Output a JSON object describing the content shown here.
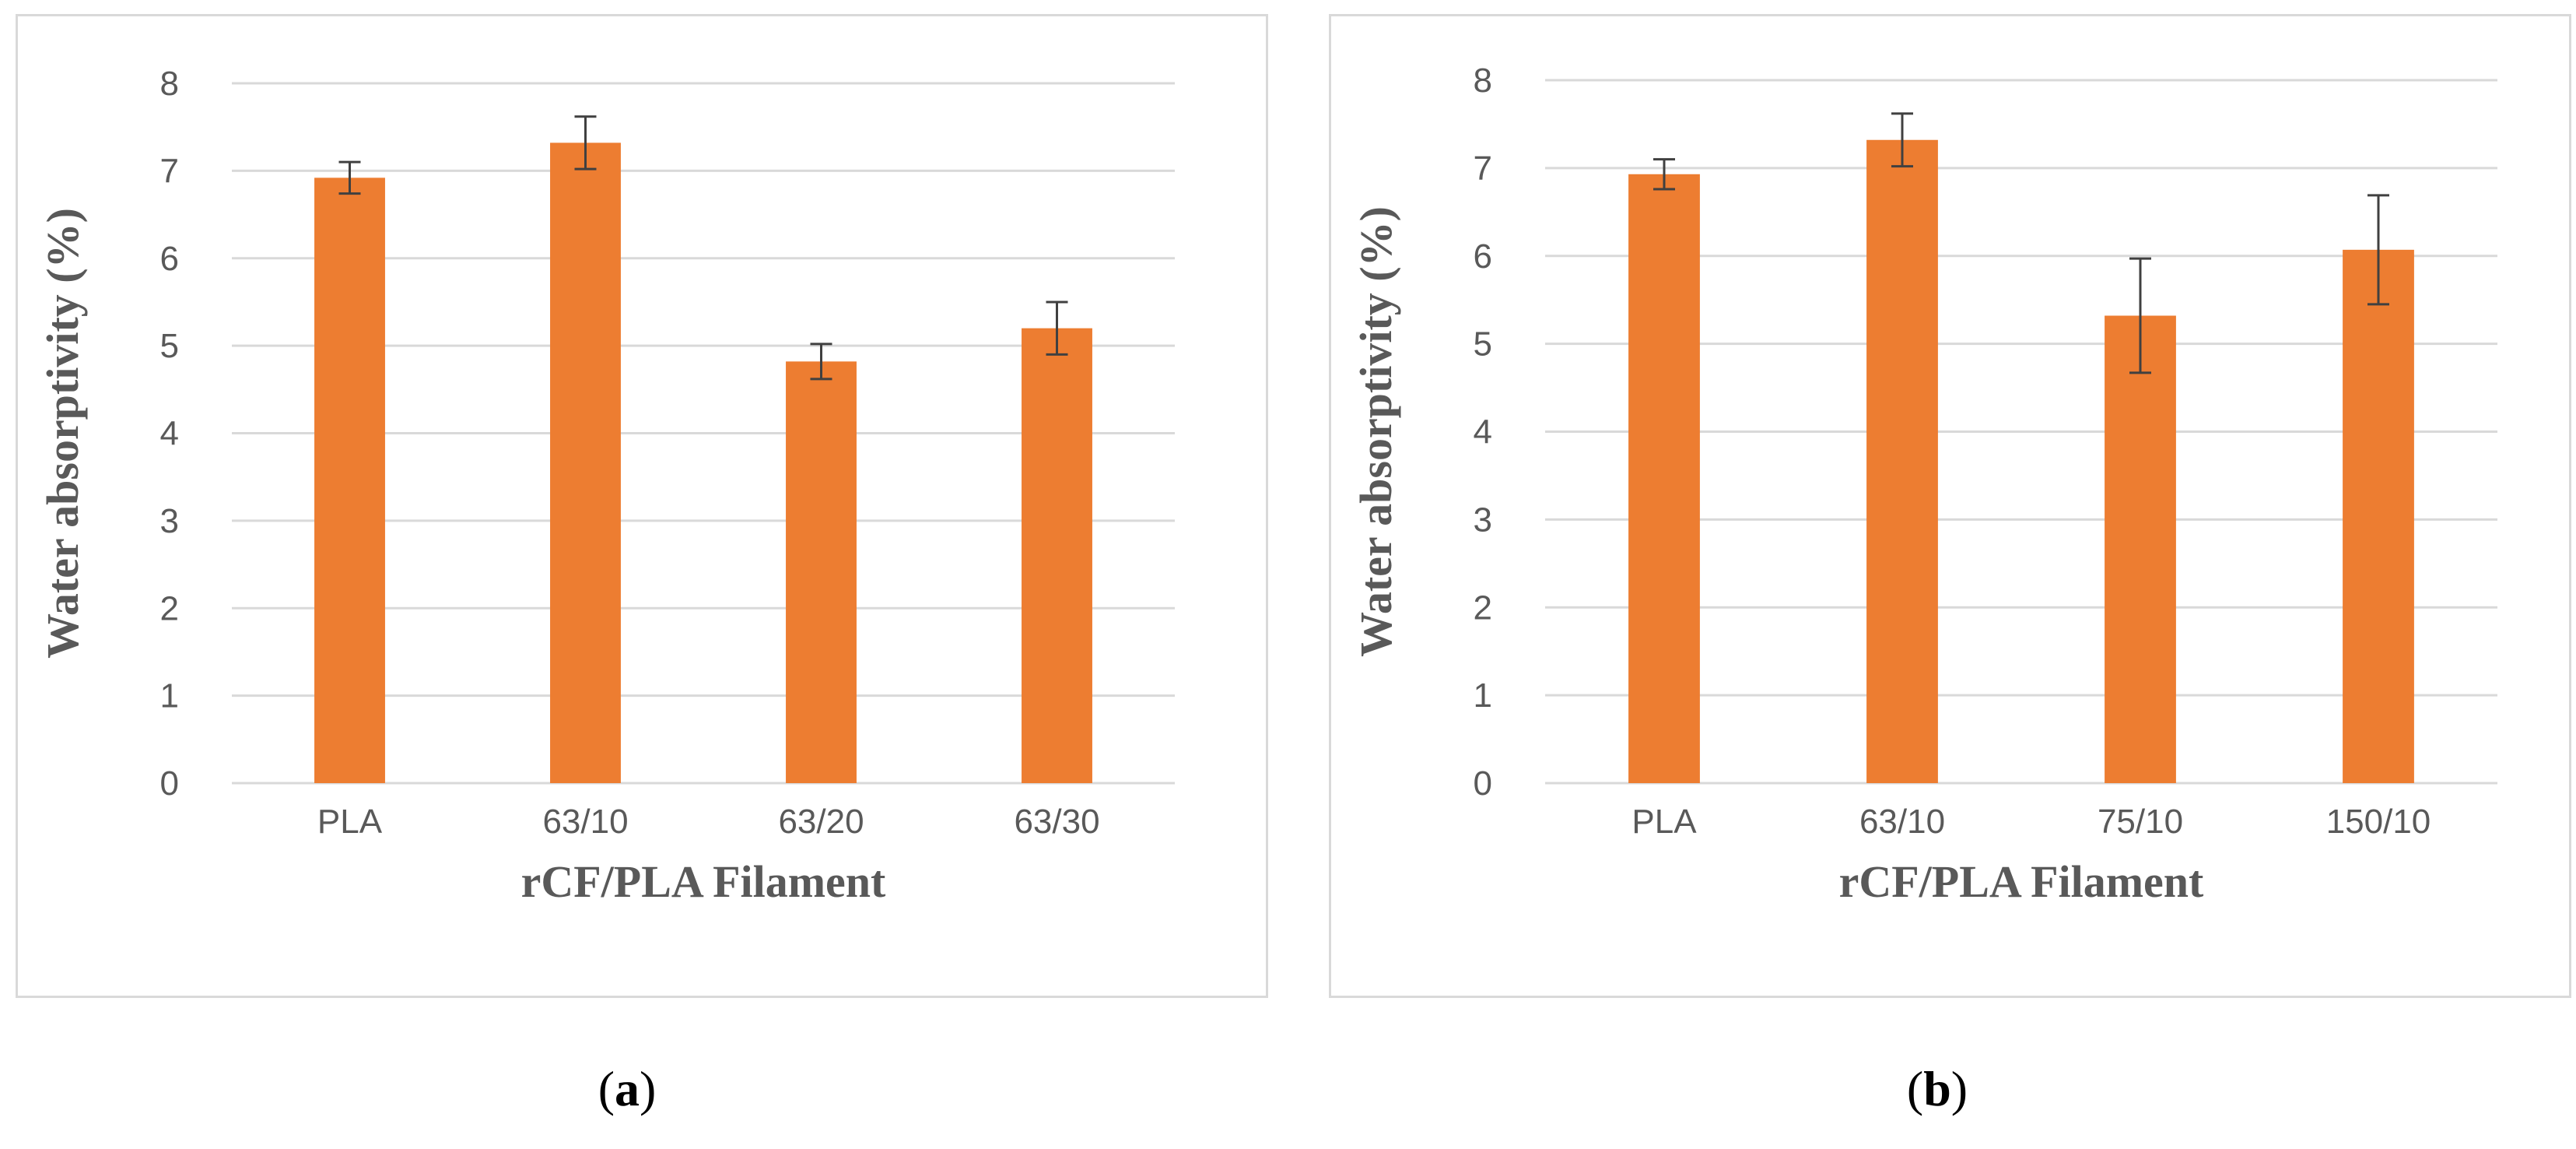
{
  "colors": {
    "bar": "#ED7D31",
    "grid": "#D9D9D9",
    "tick_text": "#595959",
    "axis_title": "#595959",
    "error_bar": "#404040"
  },
  "chart_data": [
    {
      "type": "bar",
      "panel": "a",
      "categories": [
        "PLA",
        "63/10",
        "63/20",
        "63/30"
      ],
      "values": [
        6.92,
        7.32,
        4.82,
        5.2
      ],
      "errors": [
        0.18,
        0.3,
        0.2,
        0.3
      ],
      "xlabel": "rCF/PLA Filament",
      "ylabel": "Water absorptivity (%)",
      "ylim": [
        0,
        8
      ],
      "yticks": [
        "0",
        "1",
        "2",
        "3",
        "4",
        "5",
        "6",
        "7",
        "8"
      ],
      "grid": true
    },
    {
      "type": "bar",
      "panel": "b",
      "categories": [
        "PLA",
        "63/10",
        "75/10",
        "150/10"
      ],
      "values": [
        6.93,
        7.32,
        5.32,
        6.07
      ],
      "errors": [
        0.17,
        0.3,
        0.65,
        0.62
      ],
      "xlabel": "rCF/PLA Filament",
      "ylabel": "Water absorptivity (%)",
      "ylim": [
        0,
        8
      ],
      "yticks": [
        "0",
        "1",
        "2",
        "3",
        "4",
        "5",
        "6",
        "7",
        "8"
      ],
      "grid": true
    }
  ],
  "captions": {
    "a": {
      "open": "(",
      "letter": "a",
      "close": ")"
    },
    "b": {
      "open": "(",
      "letter": "b",
      "close": ")"
    }
  }
}
